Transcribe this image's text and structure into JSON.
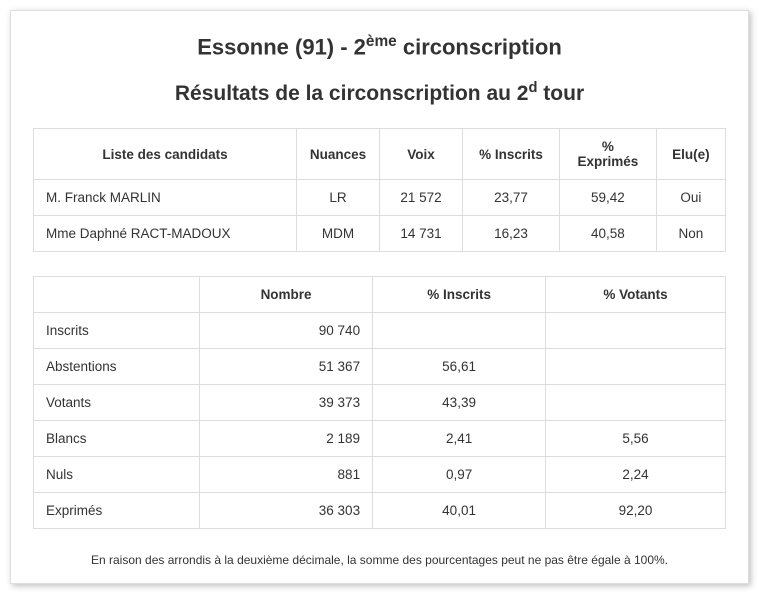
{
  "title_pre": "Essonne (91) - 2",
  "title_sup": "ème",
  "title_post": " circonscription",
  "subtitle_pre": "Résultats de la circonscription au 2",
  "subtitle_sup": "d",
  "subtitle_post": " tour",
  "candidates": {
    "headers": {
      "liste": "Liste des candidats",
      "nuances": "Nuances",
      "voix": "Voix",
      "pct_inscrits": "% Inscrits",
      "pct_exprimes": "% Exprimés",
      "elu": "Elu(e)"
    },
    "rows": [
      {
        "name": "M. Franck MARLIN",
        "nuance": "LR",
        "voix": "21 572",
        "pct_inscrits": "23,77",
        "pct_exprimes": "59,42",
        "elu": "Oui"
      },
      {
        "name": "Mme Daphné RACT-MADOUX",
        "nuance": "MDM",
        "voix": "14 731",
        "pct_inscrits": "16,23",
        "pct_exprimes": "40,58",
        "elu": "Non"
      }
    ]
  },
  "stats": {
    "headers": {
      "label": "",
      "nombre": "Nombre",
      "pct_inscrits": "% Inscrits",
      "pct_votants": "% Votants"
    },
    "rows": [
      {
        "label": "Inscrits",
        "nombre": "90 740",
        "pct_inscrits": "",
        "pct_votants": ""
      },
      {
        "label": "Abstentions",
        "nombre": "51 367",
        "pct_inscrits": "56,61",
        "pct_votants": ""
      },
      {
        "label": "Votants",
        "nombre": "39 373",
        "pct_inscrits": "43,39",
        "pct_votants": ""
      },
      {
        "label": "Blancs",
        "nombre": "2 189",
        "pct_inscrits": "2,41",
        "pct_votants": "5,56"
      },
      {
        "label": "Nuls",
        "nombre": "881",
        "pct_inscrits": "0,97",
        "pct_votants": "2,24"
      },
      {
        "label": "Exprimés",
        "nombre": "36 303",
        "pct_inscrits": "40,01",
        "pct_votants": "92,20"
      }
    ]
  },
  "footnote": "En raison des arrondis à la deuxième décimale, la somme des pourcentages peut ne pas être égale à 100%.",
  "layout": {
    "candidates_col_widths": [
      "38%",
      "12%",
      "12%",
      "14%",
      "14%",
      "10%"
    ],
    "stats_col_widths": [
      "24%",
      "25%",
      "25%",
      "26%"
    ]
  }
}
